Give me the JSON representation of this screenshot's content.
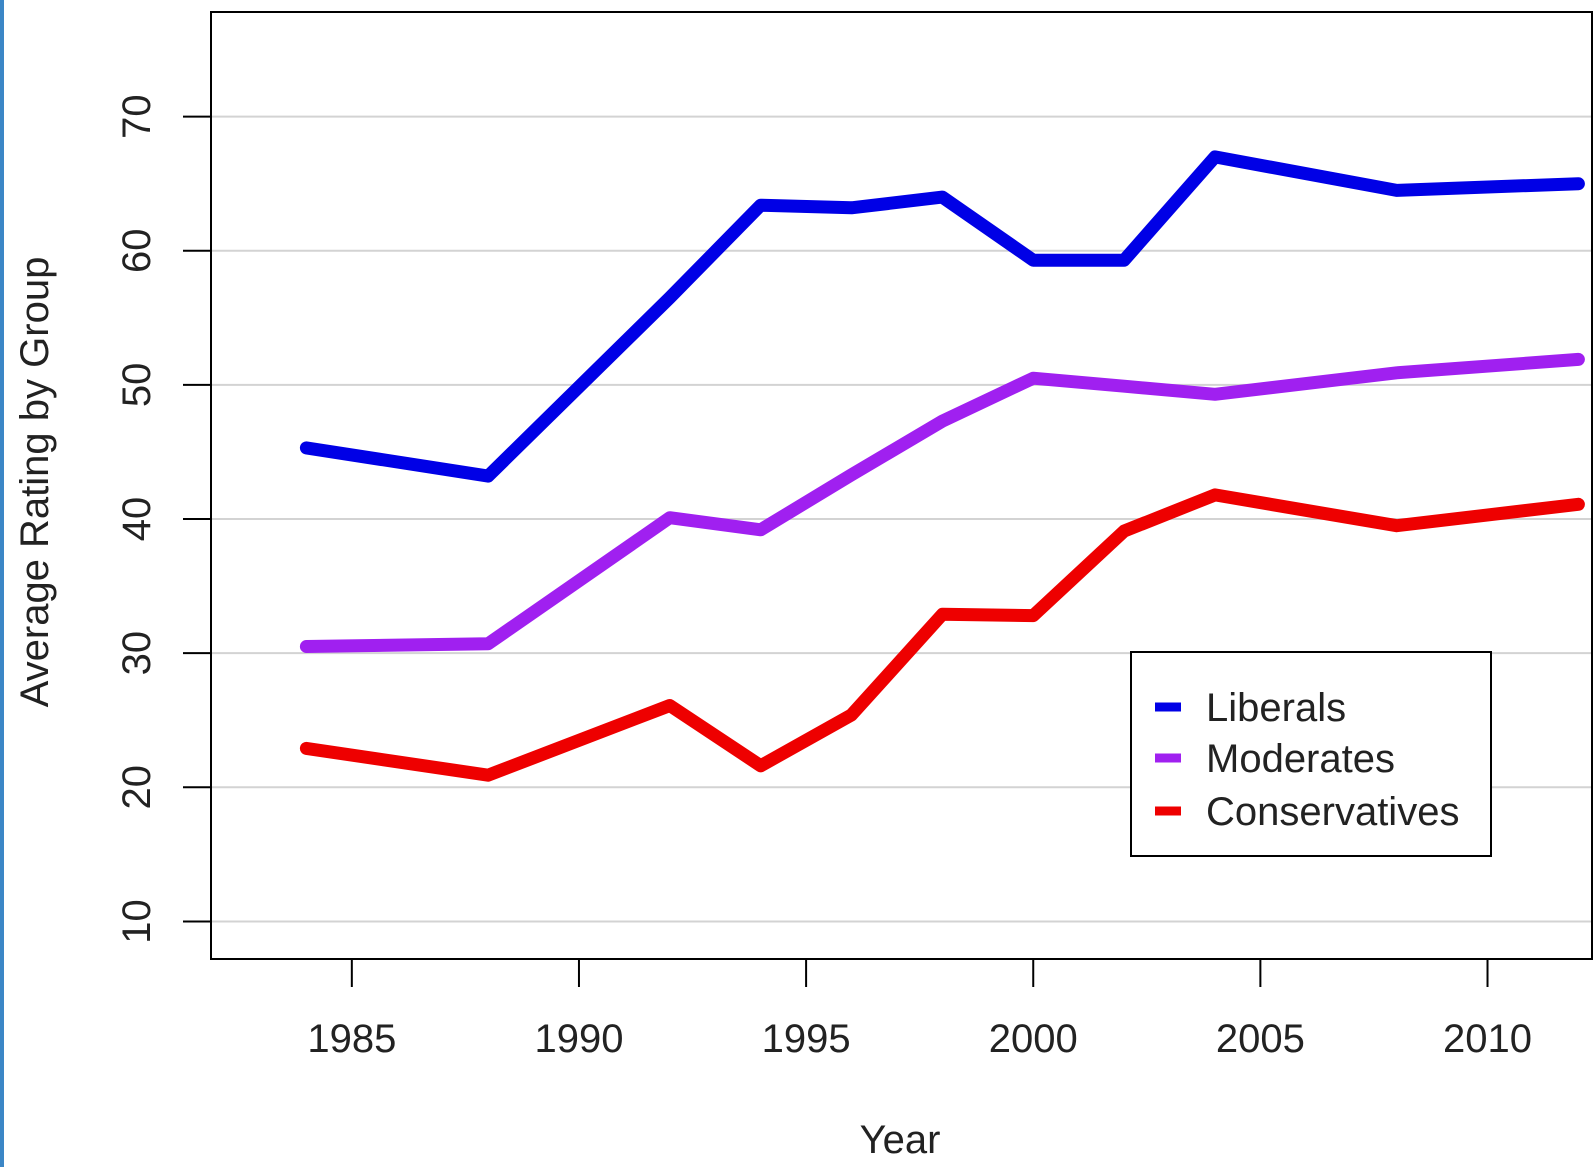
{
  "chart_data": {
    "type": "line",
    "title": "",
    "xlabel": "Year",
    "ylabel": "Average Rating by Group",
    "xlim": [
      1981.9,
      2012.3
    ],
    "ylim": [
      7.2,
      77.8
    ],
    "x_ticks": [
      1985,
      1990,
      1995,
      2000,
      2005,
      2010
    ],
    "y_ticks": [
      10,
      20,
      30,
      40,
      50,
      60,
      70
    ],
    "grid": "horizontal",
    "legend_position": "bottom-right",
    "x": [
      1984,
      1988,
      1992,
      1994,
      1996,
      1998,
      2000,
      2002,
      2004,
      2008,
      2012
    ],
    "series": [
      {
        "name": "Liberals",
        "color": "#0000e6",
        "values": [
          45.3,
          43.2,
          56.5,
          63.4,
          63.2,
          64.0,
          59.3,
          59.3,
          67.0,
          64.5,
          65.0
        ]
      },
      {
        "name": "Moderates",
        "color": "#a020f0",
        "values": [
          30.5,
          30.7,
          40.1,
          39.2,
          43.3,
          47.3,
          50.5,
          49.9,
          49.3,
          50.9,
          51.9
        ]
      },
      {
        "name": "Conservatives",
        "color": "#ee0000",
        "values": [
          22.9,
          20.9,
          26.1,
          21.6,
          25.4,
          32.9,
          32.8,
          39.1,
          41.8,
          39.5,
          41.1
        ]
      }
    ]
  }
}
